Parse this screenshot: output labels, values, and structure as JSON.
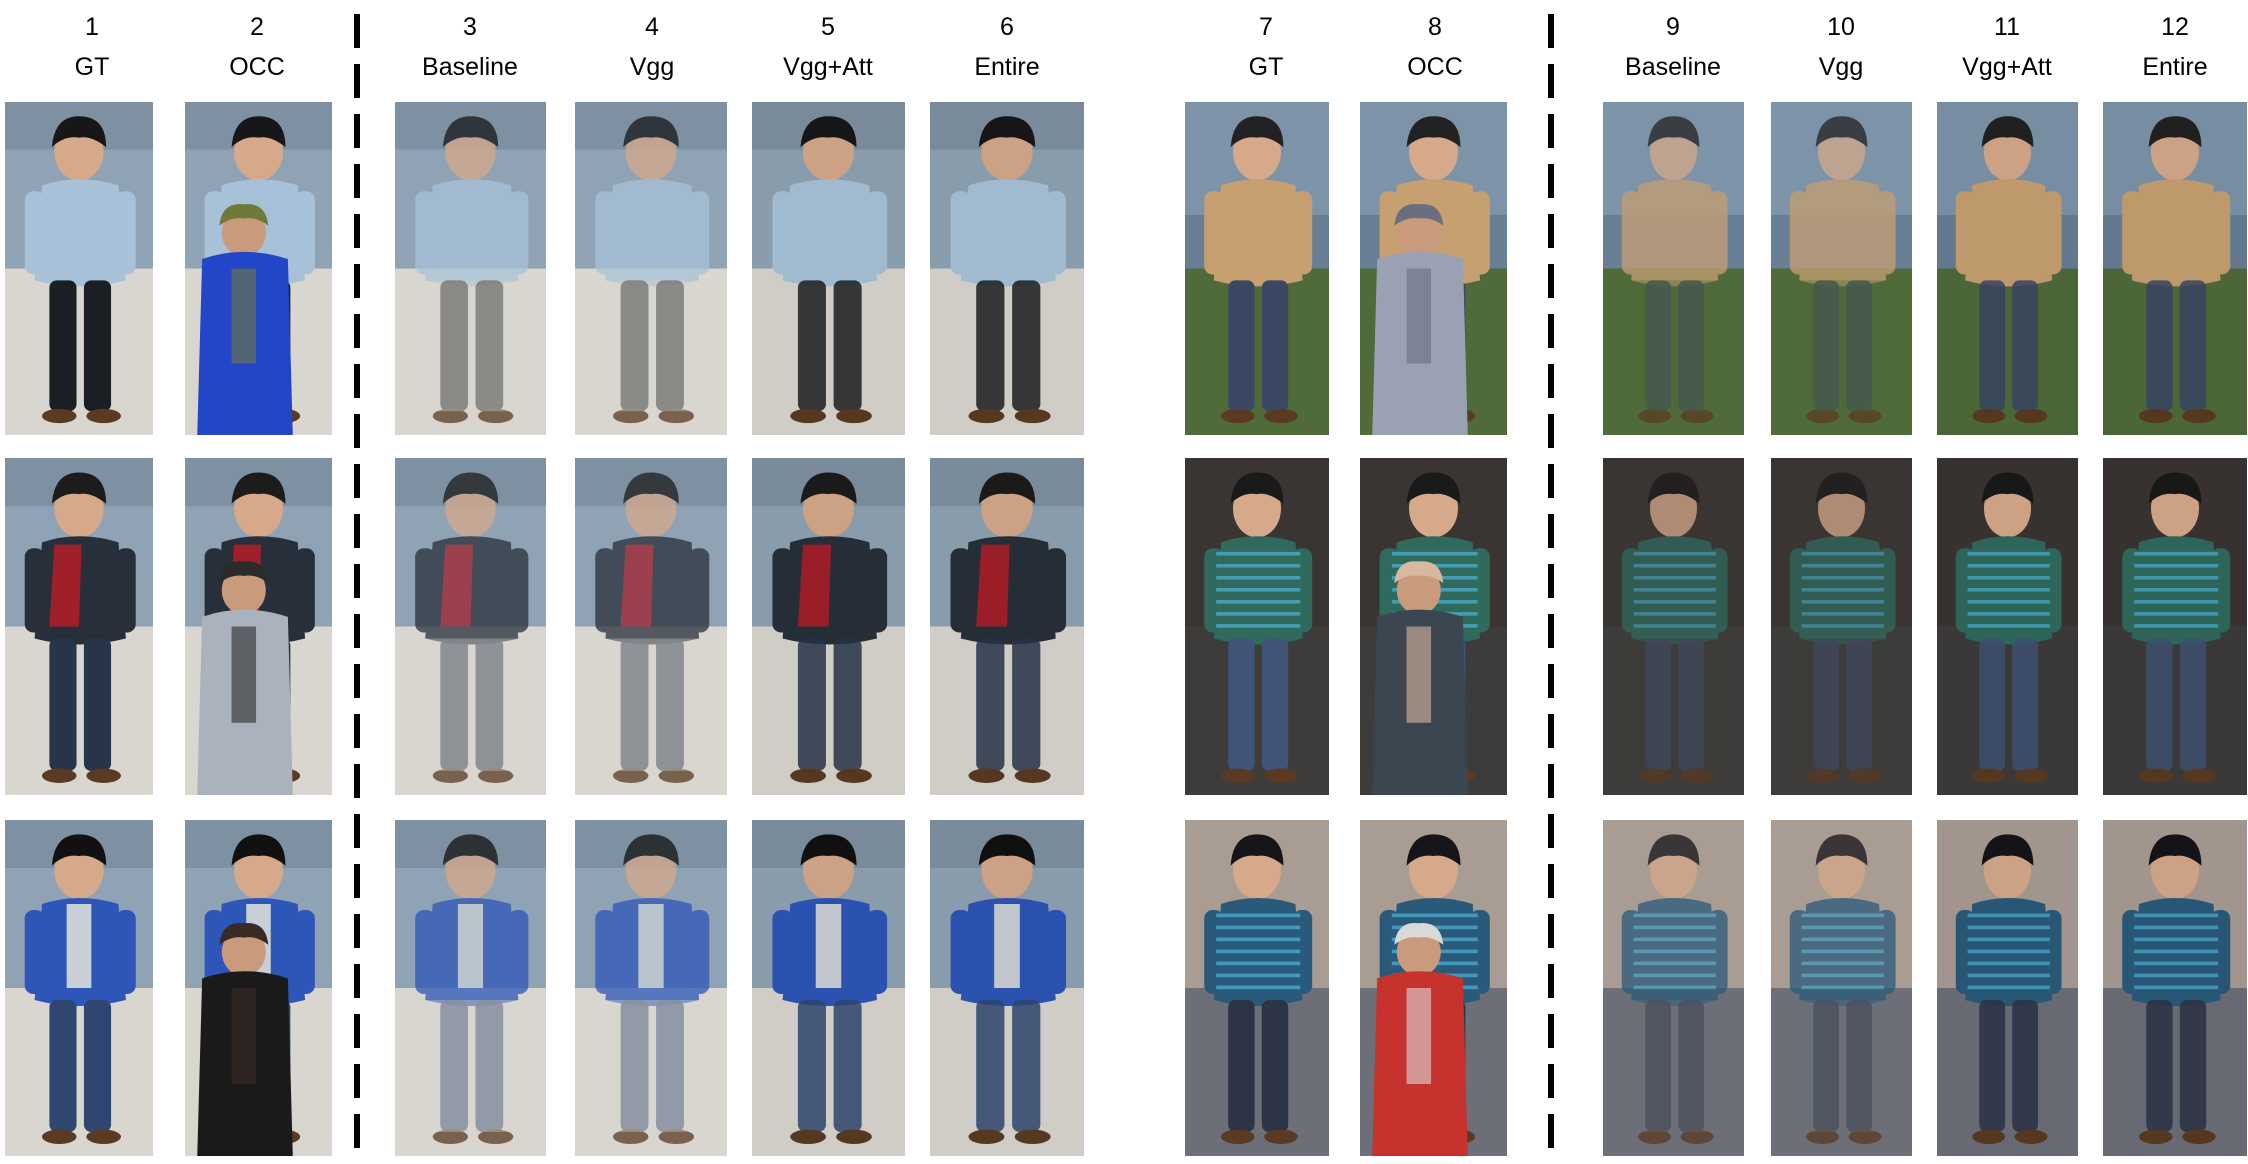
{
  "columns": [
    {
      "number": "1",
      "label": "GT"
    },
    {
      "number": "2",
      "label": "OCC"
    },
    {
      "number": "3",
      "label": "Baseline"
    },
    {
      "number": "4",
      "label": "Vgg"
    },
    {
      "number": "5",
      "label": "Vgg+Att"
    },
    {
      "number": "6",
      "label": "Entire"
    },
    {
      "number": "7",
      "label": "GT"
    },
    {
      "number": "8",
      "label": "OCC"
    },
    {
      "number": "9",
      "label": "Baseline"
    },
    {
      "number": "10",
      "label": "Vgg"
    },
    {
      "number": "11",
      "label": "Vgg+Att"
    },
    {
      "number": "12",
      "label": "Entire"
    }
  ],
  "scenes": {
    "real": {
      "bg_top": "#8fa3b4",
      "floor": "#d9d6cf",
      "rows": [
        {
          "shirt": "#a7c2d8",
          "pants": "#1b1e22",
          "hair": "#17171a",
          "occluder": "#2346c8",
          "occ_accent": "#6f7a3a"
        },
        {
          "shirt": "#a0202a",
          "pants": "#27344a",
          "hair": "#1c1c1c",
          "jacket": "#27303a",
          "occluder": "#a9b2bd",
          "occ_accent": "#2b2b2b"
        },
        {
          "shirt": "#2d56b8",
          "pants": "#2e4670",
          "hair": "#111111",
          "inner": "#c9cfd6",
          "occluder": "#1a1a1a",
          "occ_accent": "#3a2a26"
        }
      ]
    },
    "synthetic": {
      "rows": [
        {
          "bg_top": "#7c93a8",
          "ground": "#4f6b3a",
          "shirt": "#c6a071",
          "pants": "#3a4864",
          "hair": "#222222",
          "occluder": "#9aa1b3",
          "occ_accent": "#6a6f80"
        },
        {
          "bg_top": "#3a3432",
          "ground": "#3e3c3a",
          "shirt": "#2f6a5c",
          "pants": "#3f5476",
          "hair": "#1a1a1a",
          "occluder": "#3c4650",
          "occ_accent": "#d9b8a0"
        },
        {
          "bg_top": "#a99c93",
          "ground": "#6c6f78",
          "shirt": "#2a5a7a",
          "pants": "#2c3446",
          "hair": "#15151a",
          "occluder": "#c8322e",
          "occ_accent": "#d9d9d9"
        }
      ]
    }
  }
}
